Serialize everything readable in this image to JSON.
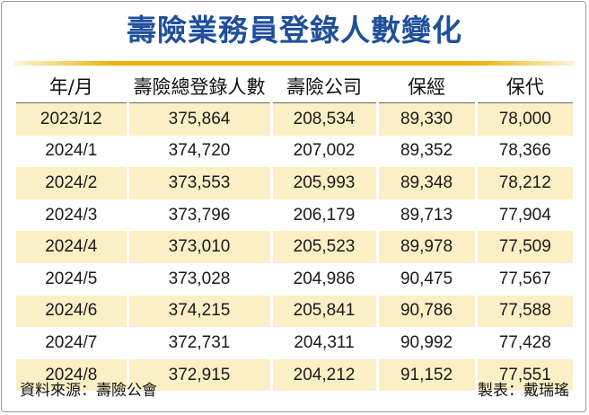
{
  "title": "壽險業務員登錄人數變化",
  "table": {
    "headers": [
      "年/月",
      "壽險總登錄人數",
      "壽險公司",
      "保經",
      "保代"
    ],
    "rows": [
      [
        "2023/12",
        "375,864",
        "208,534",
        "89,330",
        "78,000"
      ],
      [
        "2024/1",
        "374,720",
        "207,002",
        "89,352",
        "78,366"
      ],
      [
        "2024/2",
        "373,553",
        "205,993",
        "89,348",
        "78,212"
      ],
      [
        "2024/3",
        "373,796",
        "206,179",
        "89,713",
        "77,904"
      ],
      [
        "2024/4",
        "373,010",
        "205,523",
        "89,978",
        "77,509"
      ],
      [
        "2024/5",
        "373,028",
        "204,986",
        "90,475",
        "77,567"
      ],
      [
        "2024/6",
        "374,215",
        "205,841",
        "90,786",
        "77,588"
      ],
      [
        "2024/7",
        "372,731",
        "204,311",
        "90,992",
        "77,428"
      ],
      [
        "2024/8",
        "372,915",
        "204,212",
        "91,152",
        "77,551"
      ]
    ]
  },
  "footer": {
    "source": "資料來源：壽險公會",
    "producer": "製表：戴瑞瑤"
  },
  "colors": {
    "title": "#1f4f9c",
    "rule": "#e8b400",
    "band": "#fbefc6"
  }
}
